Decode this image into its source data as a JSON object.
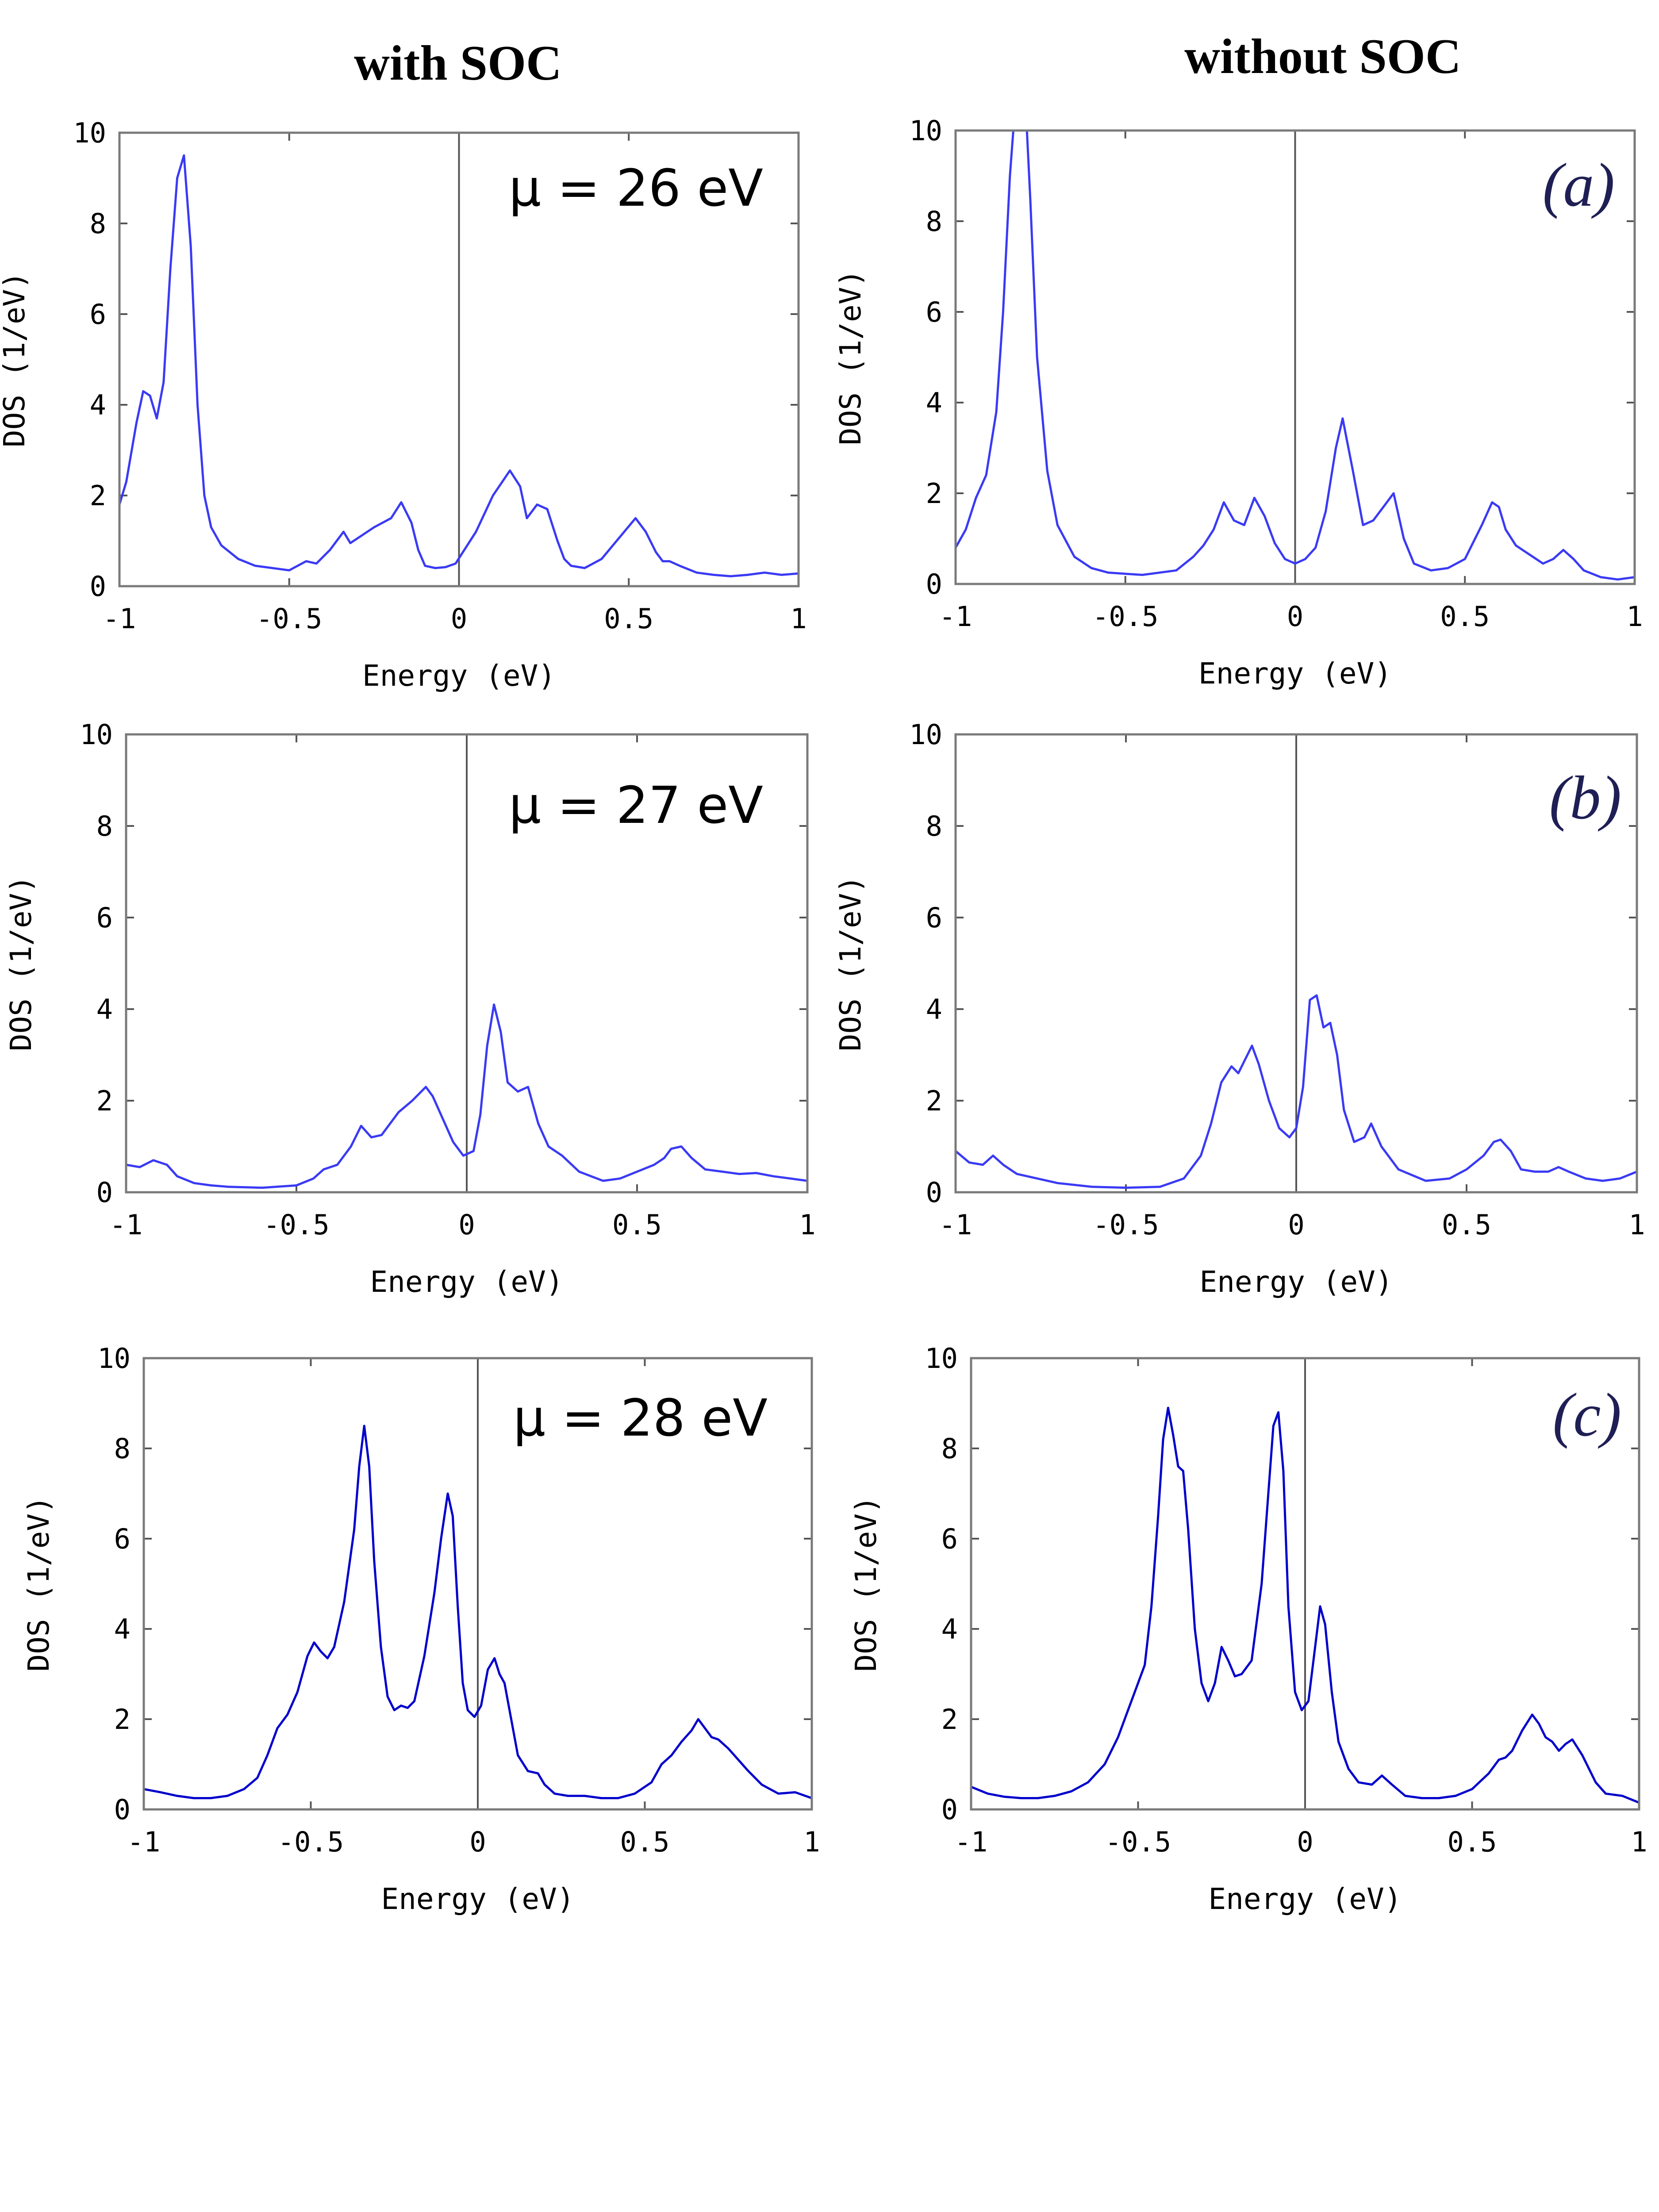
{
  "figure": {
    "column_titles": [
      "with SOC",
      "without SOC"
    ],
    "mu_labels": [
      "μ = 26 eV",
      "μ = 27 eV",
      "μ = 28 eV"
    ],
    "panel_labels": [
      "(a)",
      "(b)",
      "(c)"
    ],
    "colors": {
      "light_curve": "#3a3af5",
      "dark_curve": "#0000cc"
    }
  },
  "chart_data": [
    {
      "type": "line",
      "panel": "(a)",
      "column": "with SOC",
      "mu": "μ = 26 eV",
      "title": "",
      "xlabel": "Energy (eV)",
      "ylabel": "DOS (1/eV)",
      "xlim": [
        -1,
        1
      ],
      "ylim": [
        0,
        10
      ],
      "xticks": [
        "-1",
        "-0.5",
        "0",
        "0.5",
        "1"
      ],
      "yticks": [
        "0",
        "2",
        "4",
        "6",
        "8",
        "10"
      ],
      "series": [
        {
          "name": "DOS",
          "x": [
            -1,
            -0.98,
            -0.95,
            -0.93,
            -0.91,
            -0.89,
            -0.87,
            -0.85,
            -0.83,
            -0.81,
            -0.79,
            -0.77,
            -0.75,
            -0.73,
            -0.7,
            -0.65,
            -0.6,
            -0.55,
            -0.5,
            -0.45,
            -0.42,
            -0.38,
            -0.34,
            -0.32,
            -0.29,
            -0.25,
            -0.2,
            -0.17,
            -0.14,
            -0.12,
            -0.1,
            -0.07,
            -0.04,
            -0.01,
            0.05,
            0.1,
            0.15,
            0.18,
            0.2,
            0.23,
            0.26,
            0.29,
            0.31,
            0.33,
            0.37,
            0.42,
            0.47,
            0.52,
            0.55,
            0.58,
            0.6,
            0.62,
            0.65,
            0.7,
            0.75,
            0.8,
            0.85,
            0.9,
            0.95,
            1
          ],
          "values": [
            1.8,
            2.3,
            3.6,
            4.3,
            4.2,
            3.7,
            4.5,
            7.0,
            9.0,
            9.5,
            7.5,
            4.0,
            2.0,
            1.3,
            0.9,
            0.6,
            0.45,
            0.4,
            0.35,
            0.55,
            0.5,
            0.8,
            1.2,
            0.95,
            1.1,
            1.3,
            1.5,
            1.85,
            1.4,
            0.8,
            0.45,
            0.4,
            0.42,
            0.5,
            1.2,
            2.0,
            2.55,
            2.2,
            1.5,
            1.8,
            1.7,
            1.0,
            0.6,
            0.45,
            0.4,
            0.6,
            1.05,
            1.5,
            1.2,
            0.75,
            0.55,
            0.55,
            0.45,
            0.3,
            0.25,
            0.22,
            0.25,
            0.3,
            0.25,
            0.28
          ]
        }
      ]
    },
    {
      "type": "line",
      "panel": "(a)",
      "column": "without SOC",
      "title": "",
      "xlabel": "Energy (eV)",
      "ylabel": "DOS (1/eV)",
      "xlim": [
        -1,
        1
      ],
      "ylim": [
        0,
        10
      ],
      "xticks": [
        "-1",
        "-0.5",
        "0",
        "0.5",
        "1"
      ],
      "yticks": [
        "0",
        "2",
        "4",
        "6",
        "8",
        "10"
      ],
      "series": [
        {
          "name": "DOS",
          "x": [
            -1,
            -0.97,
            -0.94,
            -0.91,
            -0.88,
            -0.86,
            -0.84,
            -0.83,
            -0.82,
            -0.81,
            -0.8,
            -0.79,
            -0.78,
            -0.76,
            -0.73,
            -0.7,
            -0.65,
            -0.6,
            -0.55,
            -0.45,
            -0.35,
            -0.3,
            -0.27,
            -0.24,
            -0.21,
            -0.18,
            -0.15,
            -0.12,
            -0.09,
            -0.06,
            -0.03,
            0,
            0.03,
            0.06,
            0.09,
            0.12,
            0.14,
            0.17,
            0.2,
            0.23,
            0.26,
            0.29,
            0.32,
            0.35,
            0.4,
            0.45,
            0.5,
            0.55,
            0.58,
            0.6,
            0.62,
            0.65,
            0.68,
            0.7,
            0.73,
            0.76,
            0.79,
            0.82,
            0.85,
            0.9,
            0.95,
            1
          ],
          "values": [
            0.8,
            1.2,
            1.9,
            2.4,
            3.8,
            6.0,
            9.0,
            10.0,
            10.0,
            10.0,
            10.0,
            10.0,
            8.5,
            5.0,
            2.5,
            1.3,
            0.6,
            0.35,
            0.25,
            0.2,
            0.3,
            0.6,
            0.85,
            1.2,
            1.8,
            1.4,
            1.3,
            1.9,
            1.5,
            0.9,
            0.55,
            0.45,
            0.55,
            0.8,
            1.6,
            3.0,
            3.65,
            2.5,
            1.3,
            1.4,
            1.7,
            2.0,
            1.0,
            0.45,
            0.3,
            0.35,
            0.55,
            1.3,
            1.8,
            1.7,
            1.2,
            0.85,
            0.7,
            0.6,
            0.45,
            0.55,
            0.75,
            0.55,
            0.3,
            0.15,
            0.1,
            0.15
          ]
        }
      ]
    },
    {
      "type": "line",
      "panel": "(b)",
      "column": "with SOC",
      "mu": "μ = 27 eV",
      "title": "",
      "xlabel": "Energy (eV)",
      "ylabel": "DOS (1/eV)",
      "xlim": [
        -1,
        1
      ],
      "ylim": [
        0,
        10
      ],
      "xticks": [
        "-1",
        "-0.5",
        "0",
        "0.5",
        "1"
      ],
      "yticks": [
        "0",
        "2",
        "4",
        "6",
        "8",
        "10"
      ],
      "series": [
        {
          "name": "DOS",
          "x": [
            -1,
            -0.96,
            -0.92,
            -0.88,
            -0.85,
            -0.8,
            -0.75,
            -0.7,
            -0.6,
            -0.5,
            -0.45,
            -0.42,
            -0.38,
            -0.34,
            -0.31,
            -0.28,
            -0.25,
            -0.2,
            -0.16,
            -0.12,
            -0.1,
            -0.07,
            -0.04,
            -0.01,
            0.02,
            0.04,
            0.06,
            0.08,
            0.1,
            0.12,
            0.15,
            0.18,
            0.21,
            0.24,
            0.28,
            0.33,
            0.4,
            0.45,
            0.5,
            0.55,
            0.58,
            0.6,
            0.63,
            0.66,
            0.7,
            0.75,
            0.8,
            0.85,
            0.9,
            0.95,
            1
          ],
          "values": [
            0.6,
            0.55,
            0.7,
            0.6,
            0.35,
            0.2,
            0.15,
            0.12,
            0.1,
            0.15,
            0.3,
            0.5,
            0.6,
            1.0,
            1.45,
            1.2,
            1.25,
            1.75,
            2.0,
            2.3,
            2.1,
            1.6,
            1.1,
            0.8,
            0.9,
            1.7,
            3.2,
            4.1,
            3.5,
            2.4,
            2.2,
            2.3,
            1.5,
            1.0,
            0.8,
            0.45,
            0.25,
            0.3,
            0.45,
            0.6,
            0.75,
            0.95,
            1.0,
            0.75,
            0.5,
            0.45,
            0.4,
            0.42,
            0.35,
            0.3,
            0.25
          ]
        }
      ]
    },
    {
      "type": "line",
      "panel": "(b)",
      "column": "without SOC",
      "title": "",
      "xlabel": "Energy (eV)",
      "ylabel": "DOS (1/eV)",
      "xlim": [
        -1,
        1
      ],
      "ylim": [
        0,
        10
      ],
      "xticks": [
        "-1",
        "-0.5",
        "0",
        "0.5",
        "1"
      ],
      "yticks": [
        "0",
        "2",
        "4",
        "6",
        "8",
        "10"
      ],
      "series": [
        {
          "name": "DOS",
          "x": [
            -1,
            -0.96,
            -0.92,
            -0.89,
            -0.86,
            -0.82,
            -0.76,
            -0.7,
            -0.6,
            -0.5,
            -0.4,
            -0.33,
            -0.28,
            -0.25,
            -0.22,
            -0.19,
            -0.17,
            -0.15,
            -0.13,
            -0.11,
            -0.08,
            -0.05,
            -0.02,
            0,
            0.02,
            0.04,
            0.06,
            0.08,
            0.1,
            0.12,
            0.14,
            0.17,
            0.2,
            0.22,
            0.25,
            0.3,
            0.38,
            0.45,
            0.5,
            0.55,
            0.58,
            0.6,
            0.63,
            0.66,
            0.7,
            0.74,
            0.77,
            0.8,
            0.85,
            0.9,
            0.95,
            1
          ],
          "values": [
            0.9,
            0.65,
            0.6,
            0.8,
            0.6,
            0.4,
            0.3,
            0.2,
            0.12,
            0.1,
            0.12,
            0.3,
            0.8,
            1.5,
            2.4,
            2.75,
            2.6,
            2.9,
            3.2,
            2.8,
            2.0,
            1.4,
            1.2,
            1.4,
            2.3,
            4.2,
            4.3,
            3.6,
            3.7,
            3.0,
            1.8,
            1.1,
            1.2,
            1.5,
            1.0,
            0.5,
            0.25,
            0.3,
            0.5,
            0.8,
            1.1,
            1.15,
            0.9,
            0.5,
            0.45,
            0.45,
            0.55,
            0.45,
            0.3,
            0.25,
            0.3,
            0.45
          ]
        }
      ]
    },
    {
      "type": "line",
      "panel": "(c)",
      "column": "with SOC",
      "mu": "μ = 28 eV",
      "title": "",
      "xlabel": "Energy (eV)",
      "ylabel": "DOS (1/eV)",
      "xlim": [
        -1,
        1
      ],
      "ylim": [
        0,
        10
      ],
      "xticks": [
        "-1",
        "-0.5",
        "0",
        "0.5",
        "1"
      ],
      "yticks": [
        "0",
        "2",
        "4",
        "6",
        "8",
        "10"
      ],
      "series": [
        {
          "name": "DOS",
          "x": [
            -1,
            -0.95,
            -0.9,
            -0.85,
            -0.8,
            -0.75,
            -0.7,
            -0.66,
            -0.63,
            -0.6,
            -0.57,
            -0.54,
            -0.51,
            -0.49,
            -0.47,
            -0.45,
            -0.43,
            -0.4,
            -0.37,
            -0.355,
            -0.34,
            -0.325,
            -0.31,
            -0.29,
            -0.27,
            -0.25,
            -0.23,
            -0.21,
            -0.19,
            -0.16,
            -0.13,
            -0.11,
            -0.09,
            -0.075,
            -0.06,
            -0.045,
            -0.03,
            -0.01,
            0.01,
            0.03,
            0.05,
            0.065,
            0.08,
            0.1,
            0.12,
            0.15,
            0.18,
            0.2,
            0.23,
            0.27,
            0.32,
            0.37,
            0.42,
            0.47,
            0.52,
            0.55,
            0.58,
            0.61,
            0.64,
            0.66,
            0.68,
            0.7,
            0.72,
            0.75,
            0.78,
            0.81,
            0.85,
            0.9,
            0.95,
            1
          ],
          "values": [
            0.45,
            0.38,
            0.3,
            0.25,
            0.25,
            0.3,
            0.45,
            0.7,
            1.2,
            1.8,
            2.1,
            2.6,
            3.4,
            3.7,
            3.5,
            3.35,
            3.6,
            4.6,
            6.2,
            7.6,
            8.5,
            7.6,
            5.5,
            3.6,
            2.5,
            2.2,
            2.3,
            2.25,
            2.4,
            3.4,
            4.8,
            6.0,
            7.0,
            6.5,
            4.5,
            2.8,
            2.2,
            2.05,
            2.3,
            3.1,
            3.35,
            3.0,
            2.8,
            2.0,
            1.2,
            0.85,
            0.8,
            0.55,
            0.35,
            0.3,
            0.3,
            0.25,
            0.25,
            0.35,
            0.6,
            1.0,
            1.2,
            1.5,
            1.75,
            2.0,
            1.8,
            1.6,
            1.55,
            1.35,
            1.1,
            0.85,
            0.55,
            0.35,
            0.38,
            0.25
          ]
        }
      ]
    },
    {
      "type": "line",
      "panel": "(c)",
      "column": "without SOC",
      "title": "",
      "xlabel": "Energy (eV)",
      "ylabel": "DOS (1/eV)",
      "xlim": [
        -1,
        1
      ],
      "ylim": [
        0,
        10
      ],
      "xticks": [
        "-1",
        "-0.5",
        "0",
        "0.5",
        "1"
      ],
      "yticks": [
        "0",
        "2",
        "4",
        "6",
        "8",
        "10"
      ],
      "series": [
        {
          "name": "DOS",
          "x": [
            -1,
            -0.95,
            -0.9,
            -0.85,
            -0.8,
            -0.75,
            -0.7,
            -0.65,
            -0.6,
            -0.56,
            -0.53,
            -0.5,
            -0.48,
            -0.46,
            -0.44,
            -0.425,
            -0.41,
            -0.395,
            -0.38,
            -0.365,
            -0.35,
            -0.33,
            -0.31,
            -0.29,
            -0.27,
            -0.25,
            -0.23,
            -0.21,
            -0.19,
            -0.16,
            -0.13,
            -0.11,
            -0.095,
            -0.08,
            -0.065,
            -0.05,
            -0.03,
            -0.01,
            0.01,
            0.03,
            0.045,
            0.06,
            0.08,
            0.1,
            0.13,
            0.16,
            0.2,
            0.23,
            0.26,
            0.3,
            0.35,
            0.4,
            0.45,
            0.5,
            0.55,
            0.58,
            0.6,
            0.62,
            0.65,
            0.68,
            0.7,
            0.72,
            0.74,
            0.76,
            0.78,
            0.8,
            0.83,
            0.87,
            0.9,
            0.95,
            1
          ],
          "values": [
            0.5,
            0.35,
            0.28,
            0.25,
            0.25,
            0.3,
            0.4,
            0.6,
            1.0,
            1.6,
            2.2,
            2.8,
            3.2,
            4.5,
            6.5,
            8.2,
            8.9,
            8.3,
            7.6,
            7.5,
            6.2,
            4.0,
            2.8,
            2.4,
            2.8,
            3.6,
            3.3,
            2.95,
            3.0,
            3.3,
            5.0,
            7.0,
            8.5,
            8.8,
            7.5,
            4.5,
            2.6,
            2.2,
            2.4,
            3.6,
            4.5,
            4.1,
            2.6,
            1.5,
            0.9,
            0.6,
            0.55,
            0.75,
            0.55,
            0.3,
            0.25,
            0.25,
            0.3,
            0.45,
            0.8,
            1.1,
            1.15,
            1.3,
            1.75,
            2.1,
            1.9,
            1.6,
            1.5,
            1.3,
            1.45,
            1.55,
            1.2,
            0.6,
            0.35,
            0.3,
            0.15
          ]
        }
      ]
    }
  ]
}
